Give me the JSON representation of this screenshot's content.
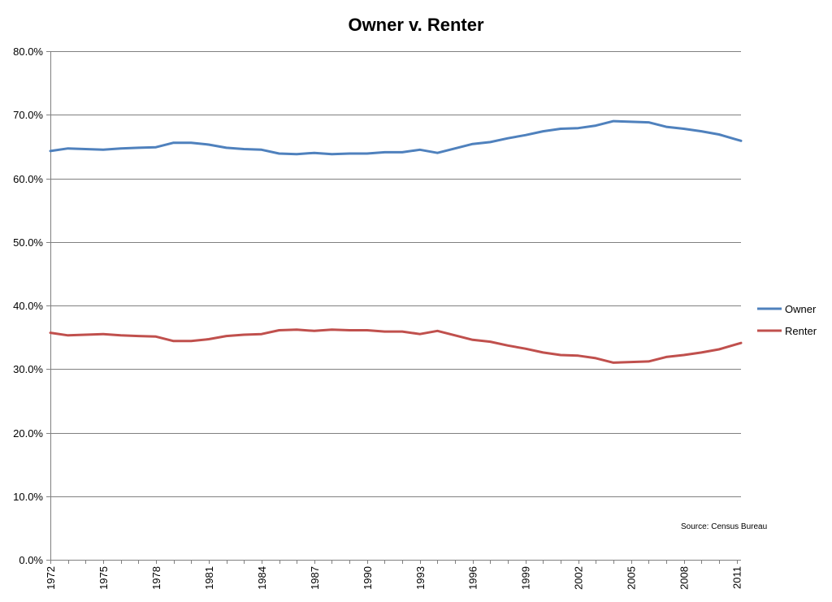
{
  "chart_data": {
    "type": "line",
    "title": "Owner v. Renter",
    "xlabel": "",
    "ylabel": "",
    "ylim": [
      0,
      80
    ],
    "xlim": [
      1972,
      2011.25
    ],
    "yticks": [
      "0.0%",
      "10.0%",
      "20.0%",
      "30.0%",
      "40.0%",
      "50.0%",
      "60.0%",
      "70.0%",
      "80.0%"
    ],
    "xticks": [
      "1972",
      "1975",
      "1978",
      "1981",
      "1984",
      "1987",
      "1990",
      "1993",
      "1996",
      "1999",
      "2002",
      "2005",
      "2008",
      "2011"
    ],
    "grid": true,
    "legend_position": "right",
    "annotation": "Source: Census Bureau",
    "series": [
      {
        "name": "Owner",
        "color": "#4F81BD",
        "x": [
          1972,
          1973,
          1974,
          1975,
          1976,
          1977,
          1978,
          1979,
          1980,
          1981,
          1982,
          1983,
          1984,
          1985,
          1986,
          1987,
          1988,
          1989,
          1990,
          1991,
          1992,
          1993,
          1994,
          1995,
          1996,
          1997,
          1998,
          1999,
          2000,
          2001,
          2002,
          2003,
          2004,
          2005,
          2006,
          2007,
          2008,
          2009,
          2010,
          2011,
          2011.25
        ],
        "values": [
          64.3,
          64.7,
          64.6,
          64.5,
          64.7,
          64.8,
          64.9,
          65.6,
          65.6,
          65.3,
          64.8,
          64.6,
          64.5,
          63.9,
          63.8,
          64.0,
          63.8,
          63.9,
          63.9,
          64.1,
          64.1,
          64.5,
          64.0,
          64.7,
          65.4,
          65.7,
          66.3,
          66.8,
          67.4,
          67.8,
          67.9,
          68.3,
          69.0,
          68.9,
          68.8,
          68.1,
          67.8,
          67.4,
          66.9,
          66.1,
          65.9
        ]
      },
      {
        "name": "Renter",
        "color": "#C0504D",
        "x": [
          1972,
          1973,
          1974,
          1975,
          1976,
          1977,
          1978,
          1979,
          1980,
          1981,
          1982,
          1983,
          1984,
          1985,
          1986,
          1987,
          1988,
          1989,
          1990,
          1991,
          1992,
          1993,
          1994,
          1995,
          1996,
          1997,
          1998,
          1999,
          2000,
          2001,
          2002,
          2003,
          2004,
          2005,
          2006,
          2007,
          2008,
          2009,
          2010,
          2011,
          2011.25
        ],
        "values": [
          35.7,
          35.3,
          35.4,
          35.5,
          35.3,
          35.2,
          35.1,
          34.4,
          34.4,
          34.7,
          35.2,
          35.4,
          35.5,
          36.1,
          36.2,
          36.0,
          36.2,
          36.1,
          36.1,
          35.9,
          35.9,
          35.5,
          36.0,
          35.3,
          34.6,
          34.3,
          33.7,
          33.2,
          32.6,
          32.2,
          32.1,
          31.7,
          31.0,
          31.1,
          31.2,
          31.9,
          32.2,
          32.6,
          33.1,
          33.9,
          34.1
        ]
      }
    ]
  }
}
